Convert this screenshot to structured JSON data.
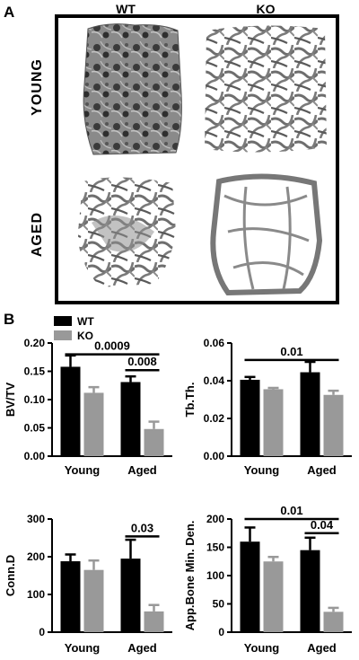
{
  "panel_a": {
    "letter": "A",
    "columns": [
      "WT",
      "KO"
    ],
    "rows": [
      "YOUNG",
      "AGED"
    ]
  },
  "panel_b": {
    "letter": "B",
    "legend": [
      {
        "label": "WT",
        "color": "#000000"
      },
      {
        "label": "KO",
        "color": "#999999"
      }
    ]
  },
  "colors": {
    "wt": "#000000",
    "ko": "#999999"
  },
  "chart_data": [
    {
      "type": "bar",
      "ylabel": "BV/TV",
      "categories": [
        "Young",
        "Aged"
      ],
      "ylim": [
        0,
        0.2
      ],
      "yticks": [
        "0.00",
        "0.05",
        "0.10",
        "0.15",
        "0.20"
      ],
      "yticks_values": [
        0,
        0.05,
        0.1,
        0.15,
        0.2
      ],
      "series": [
        {
          "name": "WT",
          "values": [
            0.158,
            0.131
          ],
          "errors": [
            0.02,
            0.01
          ]
        },
        {
          "name": "KO",
          "values": [
            0.112,
            0.048
          ],
          "errors": [
            0.01,
            0.013
          ]
        }
      ],
      "annotations": [
        {
          "text": "0.0009",
          "from": [
            0,
            0
          ],
          "to": [
            1,
            1
          ],
          "level": 0.18
        },
        {
          "text": "0.008",
          "from": [
            1,
            0
          ],
          "to": [
            1,
            1
          ],
          "level": 0.152
        }
      ]
    },
    {
      "type": "bar",
      "ylabel": "Tb.Th.",
      "categories": [
        "Young",
        "Aged"
      ],
      "ylim": [
        0,
        0.06
      ],
      "yticks": [
        "0.00",
        "0.02",
        "0.04",
        "0.06"
      ],
      "yticks_values": [
        0,
        0.02,
        0.04,
        0.06
      ],
      "series": [
        {
          "name": "WT",
          "values": [
            0.0405,
            0.0445
          ],
          "errors": [
            0.0015,
            0.0055
          ]
        },
        {
          "name": "KO",
          "values": [
            0.0355,
            0.0325
          ],
          "errors": [
            0.0007,
            0.0022
          ]
        }
      ],
      "annotations": [
        {
          "text": "0.01",
          "from": [
            0,
            0
          ],
          "to": [
            1,
            1
          ],
          "level": 0.051
        }
      ]
    },
    {
      "type": "bar",
      "ylabel": "Conn.D",
      "categories": [
        "Young",
        "Aged"
      ],
      "ylim": [
        0,
        300
      ],
      "yticks": [
        "0",
        "100",
        "200",
        "300"
      ],
      "yticks_values": [
        0,
        100,
        200,
        300
      ],
      "series": [
        {
          "name": "WT",
          "values": [
            188,
            195
          ],
          "errors": [
            18,
            50
          ]
        },
        {
          "name": "KO",
          "values": [
            165,
            55
          ],
          "errors": [
            25,
            17
          ]
        }
      ],
      "annotations": [
        {
          "text": "0.03",
          "from": [
            1,
            0
          ],
          "to": [
            1,
            1
          ],
          "level": 254
        }
      ]
    },
    {
      "type": "bar",
      "ylabel": "App.Bone Min. Den.",
      "categories": [
        "Young",
        "Aged"
      ],
      "ylim": [
        0,
        200
      ],
      "yticks": [
        "0",
        "50",
        "100",
        "150",
        "200"
      ],
      "yticks_values": [
        0,
        50,
        100,
        150,
        200
      ],
      "series": [
        {
          "name": "WT",
          "values": [
            160,
            145
          ],
          "errors": [
            25,
            22
          ]
        },
        {
          "name": "KO",
          "values": [
            125,
            36
          ],
          "errors": [
            8,
            7
          ]
        }
      ],
      "annotations": [
        {
          "text": "0.01",
          "from": [
            0,
            0
          ],
          "to": [
            1,
            1
          ],
          "level": 200
        },
        {
          "text": "0.04",
          "from": [
            1,
            0
          ],
          "to": [
            1,
            1
          ],
          "level": 175
        }
      ]
    }
  ]
}
